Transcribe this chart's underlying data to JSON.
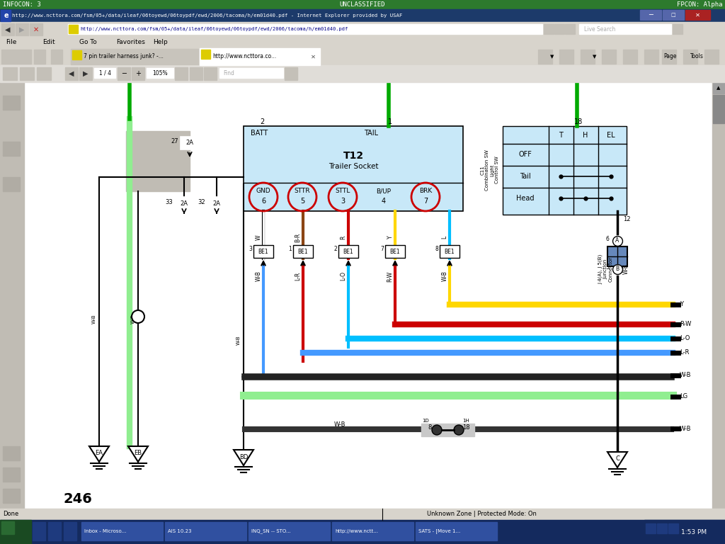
{
  "infocon_text": "INFOCON: 3",
  "unclassified_text": "UNCLASSIFIED",
  "fpcon_text": "FPCON: Alpha",
  "title_bar_text": "http://www.ncttora.com/fsm/05+/data/ileaf/06toyewd/06toypdf/ewd/2006/tacoma/h/em01d40.pdf - Internet Explorer provided by USAF",
  "url_text": "http://www.ncttora.com/fsm/05+/data/ileaf/06toyewd/06toypdf/ewd/2006/tacoma/h/em01d40.pdf",
  "tab1_text": "7 pin trailer harness junk? -...",
  "tab2_text": "http://www.ncttora.co...",
  "page_text": "1 / 4",
  "zoom_text": "105%",
  "find_text": "Find",
  "diagram_bg": "#c8e8f8",
  "csw_bg": "#c8e8f8",
  "wire_colors": {
    "white": "#ffffff",
    "brown": "#8B4513",
    "red": "#cc0000",
    "yellow": "#FFD700",
    "cyan": "#00BFFF",
    "blue": "#4040ff",
    "green": "#00aa00",
    "light_green": "#90EE90",
    "black": "#111111",
    "dark": "#222222",
    "gray": "#888888"
  },
  "ground_labels": [
    "EA",
    "EB",
    "BD",
    "C"
  ],
  "page_number": "246",
  "status_bar": "Done",
  "status_bar_right": "Unknown Zone | Protected Mode: On",
  "taskbar_time": "1:53 PM",
  "taskbar_items": [
    "Inbox - Microso...",
    "AIS 10.23",
    "INQ_SN -- STO...",
    "http://www.nctt...",
    "SATS - [Move 1..."
  ]
}
